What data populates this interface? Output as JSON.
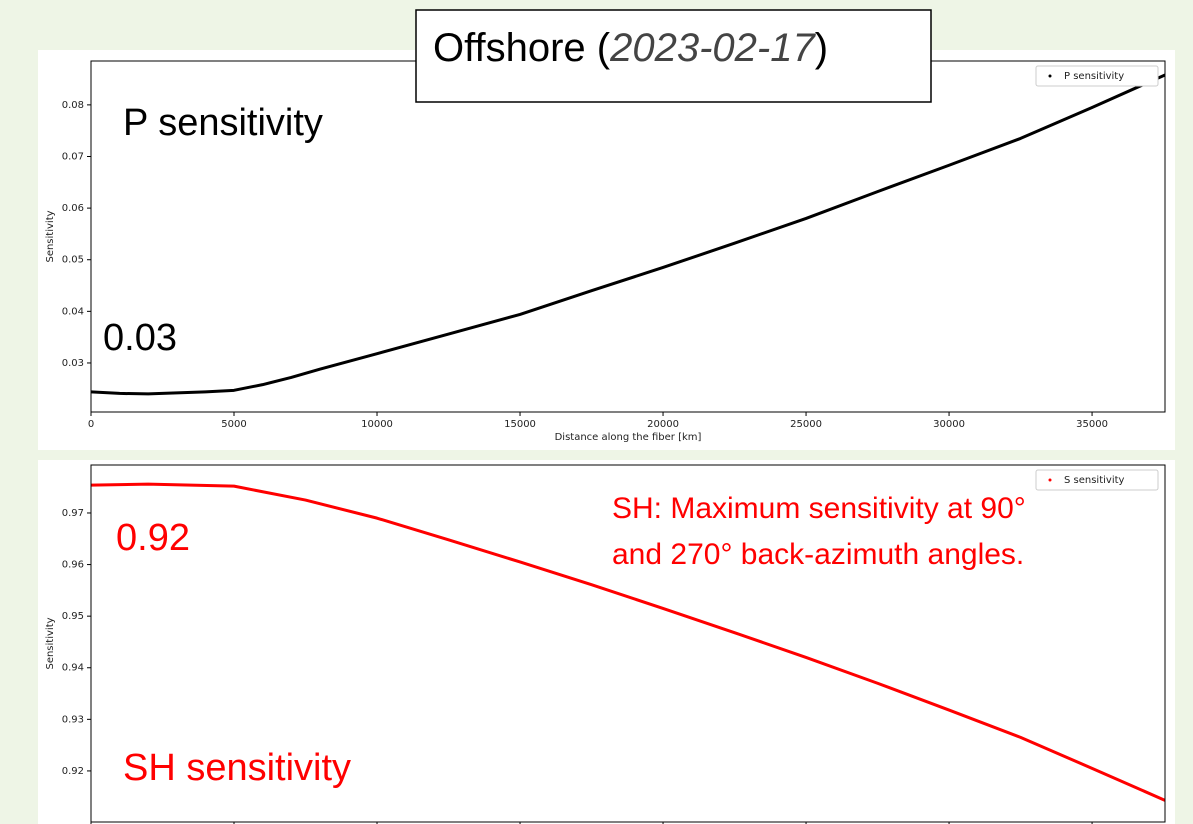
{
  "chart_data": [
    {
      "type": "line",
      "title": [
        "Offshore (",
        "2023-02-17",
        ")"
      ],
      "xlabel": "Distance along the fiber [km]",
      "ylabel": "Sensitivity",
      "xlim": [
        0,
        37550
      ],
      "ylim": [
        0.0205,
        0.0885
      ],
      "xticks": [
        0,
        5000,
        10000,
        15000,
        20000,
        25000,
        30000,
        35000
      ],
      "yticks": [
        0.03,
        0.04,
        0.05,
        0.06,
        0.07,
        0.08
      ],
      "x": [
        0,
        1000,
        2000,
        3000,
        4000,
        5000,
        6000,
        7000,
        8000,
        10000,
        12500,
        15000,
        17500,
        20000,
        22500,
        25000,
        27500,
        30000,
        32500,
        35000,
        37550
      ],
      "series": [
        {
          "name": "P sensitivity",
          "color": "#000000",
          "values": [
            0.0244,
            0.0241,
            0.024,
            0.0242,
            0.0244,
            0.0247,
            0.0258,
            0.0272,
            0.0288,
            0.0318,
            0.0356,
            0.0394,
            0.044,
            0.0485,
            0.0532,
            0.058,
            0.0632,
            0.0683,
            0.0735,
            0.0795,
            0.0858
          ]
        }
      ],
      "legend": "upper right",
      "annotations": [
        {
          "text": "P sensitivity",
          "color": "#000000"
        },
        {
          "text": "0.03",
          "color": "#000000"
        }
      ]
    },
    {
      "type": "line",
      "ylabel": "Sensitivity",
      "xlim": [
        0,
        37550
      ],
      "ylim": [
        0.9101,
        0.9793
      ],
      "xticks": [
        0,
        5000,
        10000,
        15000,
        20000,
        25000,
        30000,
        35000
      ],
      "yticks": [
        0.92,
        0.93,
        0.94,
        0.95,
        0.96,
        0.97
      ],
      "x": [
        0,
        2000,
        5000,
        7500,
        10000,
        12500,
        15000,
        17500,
        20000,
        22500,
        25000,
        27500,
        30000,
        32500,
        35000,
        37550
      ],
      "series": [
        {
          "name": "S sensitivity",
          "color": "#ff0000",
          "values": [
            0.9754,
            0.9756,
            0.9752,
            0.9725,
            0.969,
            0.9648,
            0.9605,
            0.9561,
            0.9515,
            0.9468,
            0.942,
            0.937,
            0.9318,
            0.9265,
            0.9205,
            0.9143
          ]
        }
      ],
      "legend": "upper right",
      "annotations": [
        {
          "text": "0.92",
          "color": "#ff0000"
        },
        {
          "text": "SH: Maximum sensitivity at 90°",
          "color": "#ff0000"
        },
        {
          "text": "and 270° back-azimuth angles.",
          "color": "#ff0000"
        },
        {
          "text": "SH sensitivity",
          "color": "#ff0000"
        }
      ]
    }
  ]
}
